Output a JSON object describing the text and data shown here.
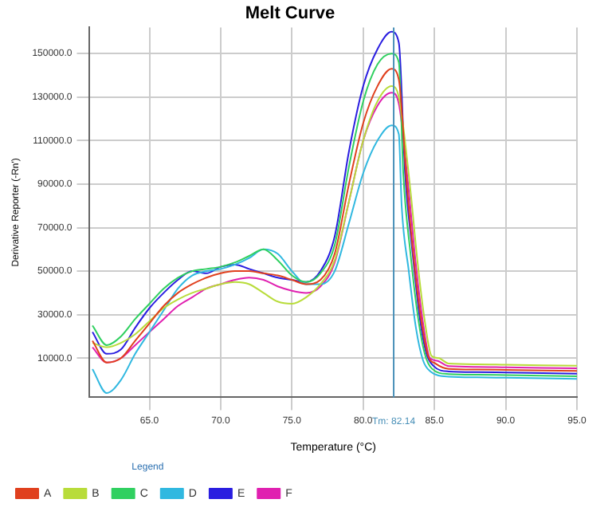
{
  "chart_data": {
    "type": "line",
    "title": "Melt Curve",
    "xlabel": "Temperature (°C)",
    "ylabel": "Derivative Reporter (-Rn')",
    "legend_title": "Legend",
    "legend": "bottom",
    "grid": true,
    "marker": "none",
    "line_style": "solid",
    "xlim": [
      60.8,
      95
    ],
    "xticks": [
      {
        "value": 65,
        "label": "65.0"
      },
      {
        "value": 70,
        "label": "70.0"
      },
      {
        "value": 75,
        "label": "75.0"
      },
      {
        "value": 80,
        "label": "80.0"
      },
      {
        "value": 85,
        "label": "85.0"
      },
      {
        "value": 90,
        "label": "90.0"
      },
      {
        "value": 95,
        "label": "95.0"
      }
    ],
    "ylim": [
      -8000,
      162000
    ],
    "yticks": [
      {
        "value": 10000,
        "label": "10000.0"
      },
      {
        "value": 30000,
        "label": "30000.0"
      },
      {
        "value": 50000,
        "label": "50000.0"
      },
      {
        "value": 70000,
        "label": "70000.0"
      },
      {
        "value": 90000,
        "label": "90000.0"
      },
      {
        "value": 110000,
        "label": "110000.0"
      },
      {
        "value": 130000,
        "label": "130000.0"
      },
      {
        "value": 150000,
        "label": "150000.0"
      }
    ],
    "ref_lines": [
      {
        "axis": "x",
        "value": 82.14,
        "label": "Tm: 82.14",
        "color": "#4a90b8"
      }
    ],
    "series": [
      {
        "name": "A",
        "color": "#e0401e",
        "x": [
          61,
          62,
          63,
          64,
          65,
          66,
          67,
          68,
          69,
          70,
          71,
          72,
          73,
          74,
          75,
          76,
          77,
          78,
          79,
          80,
          81,
          82,
          82.5,
          83.06,
          83.56,
          84.06,
          84.56,
          85.06,
          86,
          88,
          90,
          95
        ],
        "values": [
          18000,
          8000,
          10000,
          18000,
          26000,
          34000,
          40000,
          44000,
          47000,
          49000,
          50000,
          50000,
          49000,
          48000,
          46000,
          44000,
          46000,
          58000,
          90000,
          118000,
          135000,
          143000,
          138000,
          90000,
          55000,
          28000,
          11000,
          7600,
          5100,
          4800,
          4600,
          4100
        ]
      },
      {
        "name": "B",
        "color": "#b8dc3a",
        "x": [
          61,
          62,
          63,
          64,
          65,
          66,
          67,
          68,
          69,
          70,
          71,
          72,
          73,
          74,
          75,
          76,
          77,
          78,
          79,
          80,
          81,
          82,
          82.5,
          83.3,
          83.8,
          84.3,
          84.8,
          85.3,
          86,
          88,
          90,
          95
        ],
        "values": [
          17000,
          15000,
          17000,
          21000,
          27000,
          33000,
          37000,
          40000,
          42000,
          44000,
          45000,
          44000,
          40000,
          36000,
          35000,
          38000,
          44000,
          55000,
          82000,
          110000,
          128000,
          135000,
          130000,
          88000,
          55000,
          28000,
          11000,
          10000,
          7500,
          7200,
          7000,
          6500
        ]
      },
      {
        "name": "C",
        "color": "#30d060",
        "x": [
          61,
          62,
          63,
          64,
          65,
          66,
          67,
          68,
          69,
          70,
          71,
          72,
          73,
          74,
          75,
          76,
          77,
          78,
          79,
          80,
          81,
          82,
          82.5,
          82.82,
          83.32,
          83.82,
          84.32,
          84.82,
          86,
          88,
          90,
          95
        ],
        "values": [
          25000,
          16000,
          20000,
          28000,
          35000,
          42000,
          47000,
          50000,
          51000,
          52000,
          54000,
          57000,
          60000,
          55000,
          48000,
          45000,
          49000,
          62000,
          98000,
          128000,
          145000,
          150000,
          146000,
          94000,
          58000,
          30000,
          12000,
          5200,
          2700,
          2400,
          2200,
          1700
        ]
      },
      {
        "name": "D",
        "color": "#30b8e0",
        "x": [
          61,
          62,
          63,
          64,
          65,
          66,
          67,
          68,
          69,
          70,
          71,
          72,
          73,
          74,
          75,
          76,
          77,
          78,
          79,
          80,
          81,
          82,
          82.5,
          82.7,
          83.2,
          83.7,
          84.2,
          84.7,
          86,
          88,
          90,
          95
        ],
        "values": [
          5000,
          -6000,
          0,
          12000,
          22000,
          32000,
          42000,
          48000,
          50000,
          51000,
          53000,
          56000,
          60000,
          58000,
          50000,
          44000,
          44000,
          50000,
          72000,
          95000,
          110000,
          117000,
          113000,
          80000,
          50000,
          24000,
          9000,
          4000,
          1500,
          1200,
          1000,
          500
        ]
      },
      {
        "name": "E",
        "color": "#2a1ee0",
        "x": [
          61,
          62,
          63,
          64,
          65,
          66,
          67,
          68,
          69,
          70,
          71,
          72,
          73,
          74,
          75,
          76,
          77,
          78,
          79,
          80,
          81,
          82,
          82.5,
          82.94,
          83.44,
          83.94,
          84.44,
          84.94,
          86,
          88,
          90,
          95
        ],
        "values": [
          22000,
          12000,
          14000,
          24000,
          33000,
          40000,
          46000,
          50000,
          49000,
          52000,
          53000,
          51000,
          49000,
          47000,
          46000,
          45000,
          50000,
          66000,
          105000,
          135000,
          152000,
          160000,
          155000,
          95000,
          60000,
          30000,
          12000,
          6400,
          3900,
          3600,
          3400,
          2900
        ]
      },
      {
        "name": "F",
        "color": "#e020b0",
        "x": [
          61,
          62,
          63,
          64,
          65,
          66,
          67,
          68,
          69,
          70,
          71,
          72,
          73,
          74,
          75,
          76,
          77,
          78,
          79,
          80,
          81,
          82,
          82.5,
          83.18,
          83.68,
          84.18,
          84.68,
          85.18,
          86,
          88,
          90,
          95
        ],
        "values": [
          15000,
          8000,
          10000,
          16000,
          22000,
          28000,
          34000,
          38000,
          42000,
          44000,
          46000,
          47000,
          46000,
          43000,
          41000,
          40000,
          43000,
          54000,
          82000,
          110000,
          126000,
          132000,
          127000,
          88000,
          54000,
          27000,
          10000,
          8800,
          6300,
          6000,
          5800,
          5300
        ]
      }
    ]
  }
}
